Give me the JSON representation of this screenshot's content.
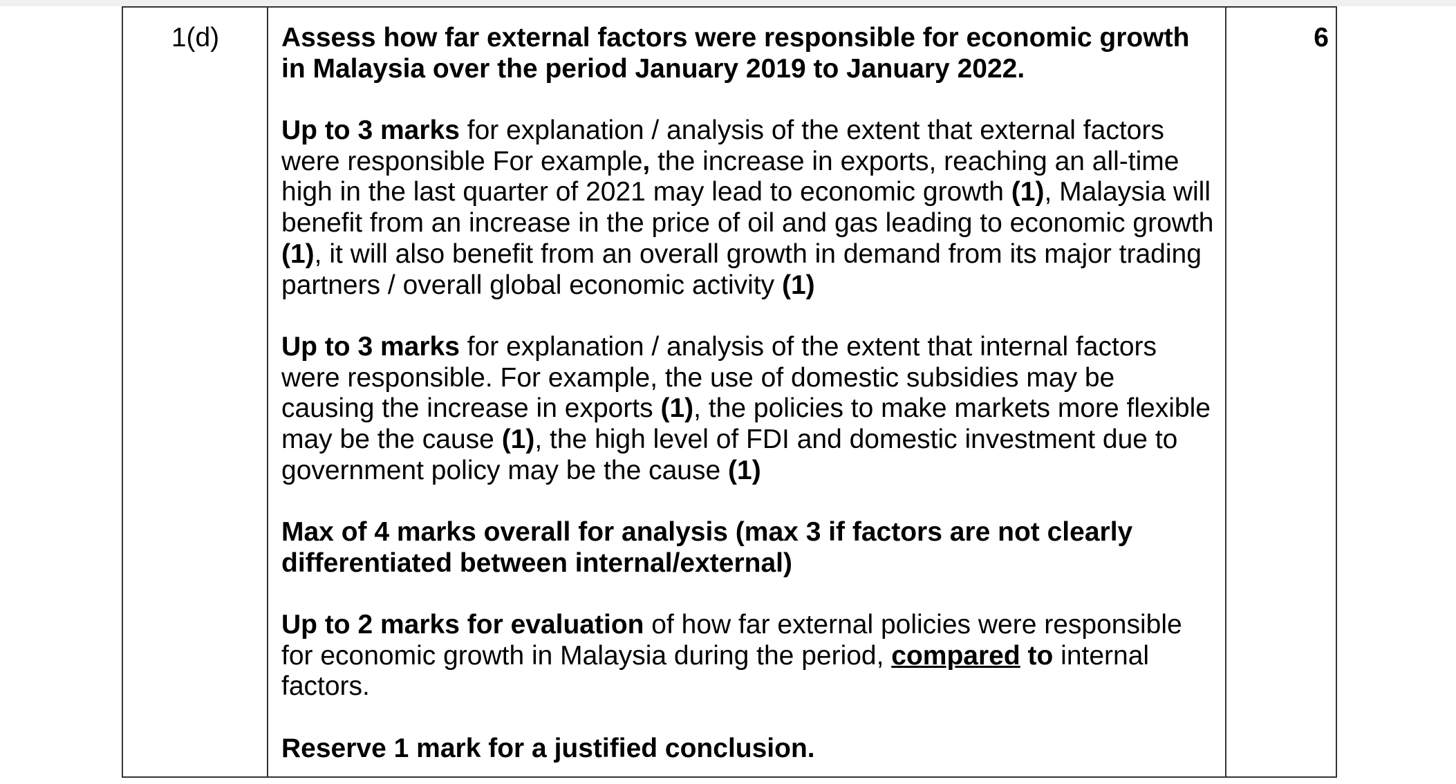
{
  "question_number": "1(d)",
  "marks": "6",
  "paragraphs": [
    [
      [
        {
          "t": "Assess how far external factors were responsible for economic growth",
          "b": true
        }
      ],
      [
        {
          "t": "in Malaysia over the period January 2019 to January 2022.",
          "b": true
        }
      ]
    ],
    [
      [
        {
          "t": "Up to 3 marks",
          "b": true
        },
        {
          "t": " for explanation / analysis of the extent that external factors"
        }
      ],
      [
        {
          "t": "were responsible For example"
        },
        {
          "t": ",",
          "b": true
        },
        {
          "t": " the increase in exports, reaching an all-time"
        }
      ],
      [
        {
          "t": "high in the last quarter of 2021 may lead to economic growth "
        },
        {
          "t": "(1)",
          "b": true
        },
        {
          "t": ", Malaysia will"
        }
      ],
      [
        {
          "t": "benefit from an increase in the price of oil and gas leading to economic growth"
        }
      ],
      [
        {
          "t": "(1)",
          "b": true
        },
        {
          "t": ", it will also benefit from an overall growth in demand from its major trading"
        }
      ],
      [
        {
          "t": "partners / overall global economic activity "
        },
        {
          "t": "(1)",
          "b": true
        }
      ]
    ],
    [
      [
        {
          "t": "Up to 3 marks",
          "b": true
        },
        {
          "t": " for explanation / analysis of the extent that internal factors"
        }
      ],
      [
        {
          "t": "were responsible. For example, the use of domestic subsidies may be"
        }
      ],
      [
        {
          "t": "causing the increase in exports "
        },
        {
          "t": "(1)",
          "b": true
        },
        {
          "t": ", the policies to make markets more flexible"
        }
      ],
      [
        {
          "t": "may be the cause "
        },
        {
          "t": "(1)",
          "b": true
        },
        {
          "t": ", the high level of FDI and domestic investment due to"
        }
      ],
      [
        {
          "t": "government policy may be the cause "
        },
        {
          "t": "(1)",
          "b": true
        }
      ]
    ],
    [
      [
        {
          "t": "Max of 4 marks overall for analysis (max 3 if factors are not clearly",
          "b": true
        }
      ],
      [
        {
          "t": "differentiated between internal/external)",
          "b": true
        }
      ]
    ],
    [
      [
        {
          "t": "Up to 2 marks for evaluation",
          "b": true
        },
        {
          "t": " of how far external policies were responsible"
        }
      ],
      [
        {
          "t": "for economic growth in Malaysia during the period, "
        },
        {
          "t": "compared",
          "b": true,
          "u": true
        },
        {
          "t": " to",
          "b": true
        },
        {
          "t": " internal"
        }
      ],
      [
        {
          "t": "factors."
        }
      ]
    ],
    [
      [
        {
          "t": "Reserve 1 mark for a justified conclusion.",
          "b": true
        }
      ]
    ]
  ]
}
